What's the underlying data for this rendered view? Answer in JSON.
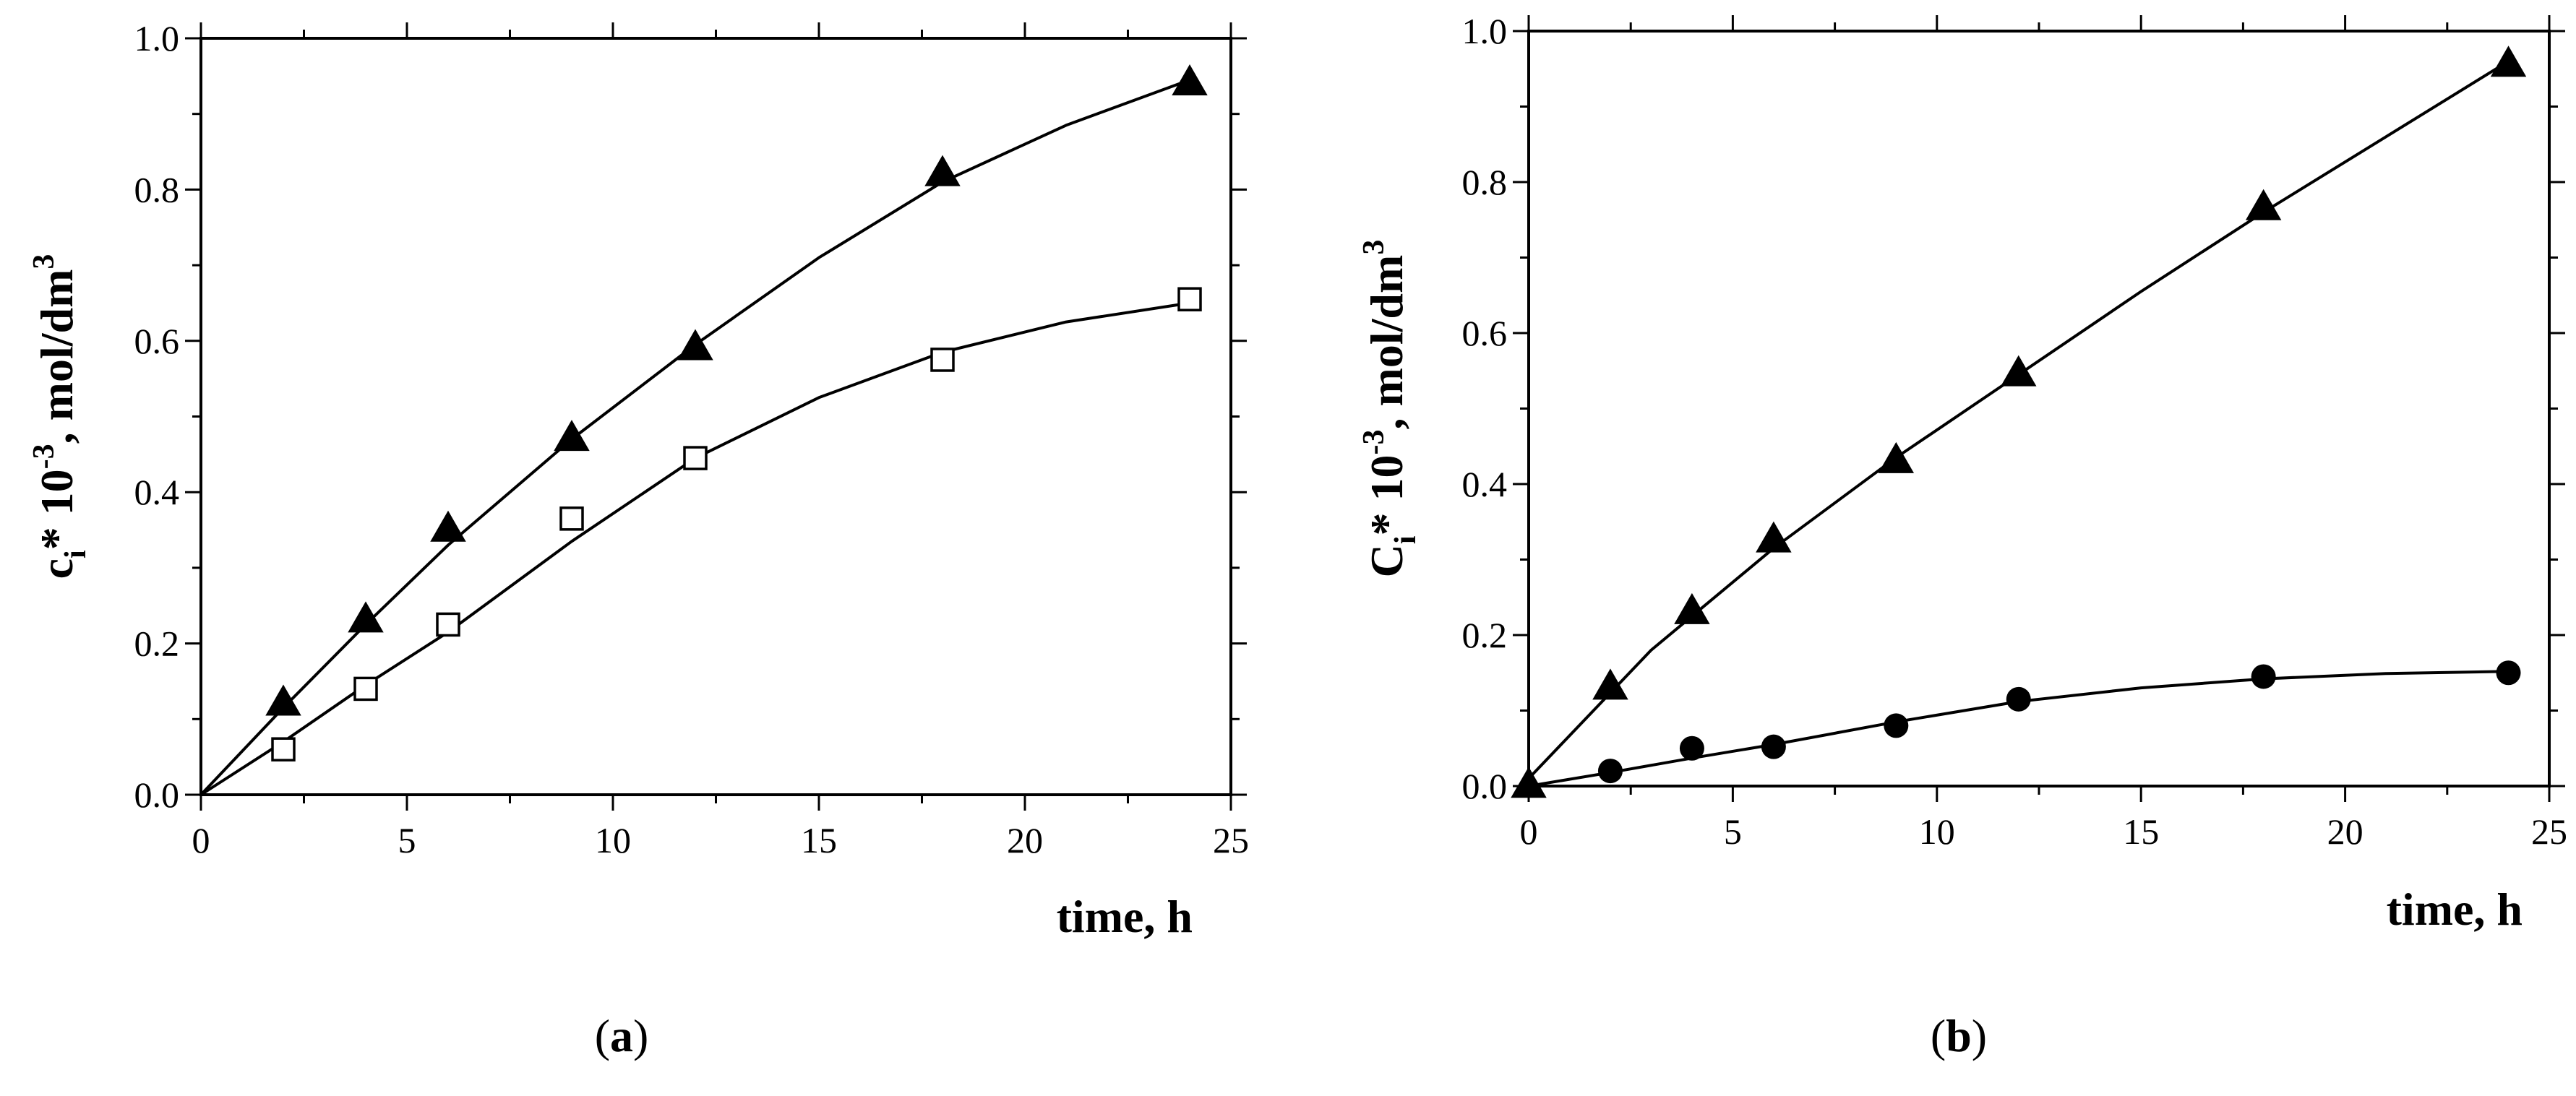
{
  "chart_data": [
    {
      "type": "scatter",
      "panel_label": "a",
      "xlabel": "time, h",
      "ylabel_parts": {
        "base": "c",
        "sub": "i",
        "mid": "* 10",
        "exp1": "-3",
        "unit": ", mol/dm",
        "exp2": "3"
      },
      "xlim": [
        0,
        25
      ],
      "ylim": [
        0,
        1.0
      ],
      "xticks": [
        "0",
        "5",
        "10",
        "15",
        "20",
        "25"
      ],
      "yticks": [
        "0.0",
        "0.2",
        "0.4",
        "0.6",
        "0.8",
        "1.0"
      ],
      "series": [
        {
          "name": "filled-triangle",
          "marker": "triangle-filled",
          "x": [
            2,
            4,
            6,
            9,
            12,
            18,
            24
          ],
          "y": [
            0.12,
            0.23,
            0.35,
            0.47,
            0.59,
            0.82,
            0.94
          ],
          "fit_x": [
            0,
            2,
            4,
            6,
            9,
            12,
            15,
            18,
            21,
            24
          ],
          "fit_y": [
            0.0,
            0.115,
            0.225,
            0.33,
            0.47,
            0.595,
            0.71,
            0.81,
            0.885,
            0.945
          ]
        },
        {
          "name": "open-square",
          "marker": "square-open",
          "x": [
            2,
            4,
            6,
            9,
            12,
            18,
            24
          ],
          "y": [
            0.06,
            0.14,
            0.225,
            0.365,
            0.445,
            0.575,
            0.655
          ],
          "fit_x": [
            0,
            2,
            4,
            6,
            9,
            12,
            15,
            18,
            21,
            24
          ],
          "fit_y": [
            0.0,
            0.07,
            0.145,
            0.215,
            0.335,
            0.445,
            0.525,
            0.585,
            0.625,
            0.65
          ]
        }
      ]
    },
    {
      "type": "scatter",
      "panel_label": "b",
      "xlabel": "time, h",
      "ylabel_parts": {
        "base": "C",
        "sub": "i",
        "mid": "* 10",
        "exp1": "-3",
        "unit": ", mol/dm",
        "exp2": "3"
      },
      "xlim": [
        0,
        25
      ],
      "ylim": [
        0,
        1.0
      ],
      "xticks": [
        "0",
        "5",
        "10",
        "15",
        "20",
        "25"
      ],
      "yticks": [
        "0.0",
        "0.2",
        "0.4",
        "0.6",
        "0.8",
        "1.0"
      ],
      "series": [
        {
          "name": "filled-triangle",
          "marker": "triangle-filled",
          "x": [
            0,
            2,
            4,
            6,
            9,
            12,
            18,
            24
          ],
          "y": [
            0.0,
            0.13,
            0.23,
            0.325,
            0.43,
            0.545,
            0.765,
            0.955
          ],
          "fit_x": [
            0,
            3,
            6,
            9,
            12,
            15,
            18,
            21,
            24
          ],
          "fit_y": [
            0.01,
            0.18,
            0.315,
            0.435,
            0.545,
            0.655,
            0.76,
            0.86,
            0.96
          ]
        },
        {
          "name": "filled-circle",
          "marker": "circle-filled",
          "x": [
            2,
            4,
            6,
            9,
            12,
            18,
            24
          ],
          "y": [
            0.02,
            0.05,
            0.052,
            0.08,
            0.115,
            0.145,
            0.15
          ],
          "fit_x": [
            0,
            2,
            4,
            6,
            9,
            12,
            15,
            18,
            21,
            24
          ],
          "fit_y": [
            0.0,
            0.018,
            0.037,
            0.055,
            0.085,
            0.112,
            0.13,
            0.142,
            0.149,
            0.152
          ]
        }
      ]
    }
  ]
}
